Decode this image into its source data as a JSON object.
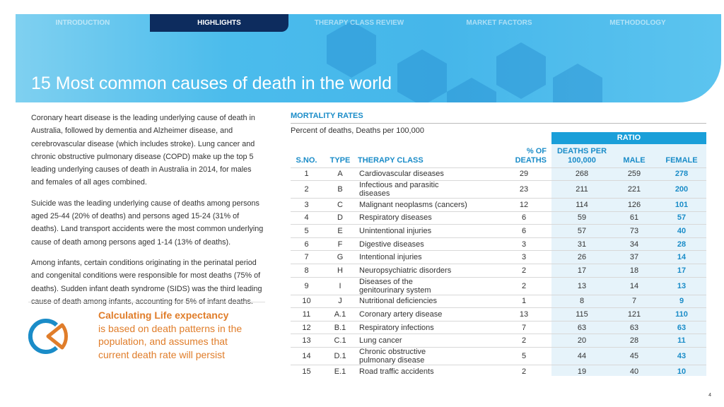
{
  "nav": {
    "tabs": [
      "INTRODUCTION",
      "HIGHLIGHTS",
      "THERAPY  CLASS REVIEW",
      "MARKET  FACTORS",
      "METHODOLOGY"
    ],
    "active": "HIGHLIGHTS"
  },
  "title": "15 Most common causes of death in the world",
  "left": {
    "paragraphs": [
      "Coronary heart disease is the leading underlying cause of death in Australia, followed by dementia and Alzheimer disease, and cerebrovascular disease (which includes stroke). Lung cancer and chronic obstructive pulmonary disease (COPD) make up the top 5 leading underlying causes of death in Australia in 2014, for males and females of all ages combined.",
      "Suicide was the leading underlying cause of deaths among persons aged 25-44 (20% of deaths) and persons aged 15-24 (31% of deaths). Land transport accidents were the most common underlying cause of death among persons aged 1-14 (13% of deaths).",
      "Among infants, certain conditions originating in the perinatal period and congenital conditions were responsible for most deaths (75% of deaths). Sudden infant death syndrome (SIDS) was the third leading cause of death among infants, accounting for 5% of infant deaths."
    ]
  },
  "callout": {
    "heading": "Calculating Life expectancy",
    "body": "is based on death patterns in the population, and assumes that current death rate will persist",
    "color": "#e07d2a"
  },
  "table": {
    "title": "MORTALITY RATES",
    "subtitle": "Percent of deaths, Deaths per 100,000",
    "group_header": "RATIO",
    "headers": [
      "S.NO.",
      "TYPE",
      "THERAPY CLASS",
      "% OF DEATHS",
      "DEATHS PER 100,000",
      "MALE",
      "FEMALE"
    ],
    "rows": [
      [
        "1",
        "A",
        "Cardiovascular diseases",
        "29",
        "268",
        "259",
        "278"
      ],
      [
        "2",
        "B",
        "Infectious and parasitic diseases",
        "23",
        "211",
        "221",
        "200"
      ],
      [
        "3",
        "C",
        "Malignant neoplasms (cancers)",
        "12",
        "114",
        "126",
        "101"
      ],
      [
        "4",
        "D",
        "Respiratory diseases",
        "6",
        "59",
        "61",
        "57"
      ],
      [
        "5",
        "E",
        "Unintentional injuries",
        "6",
        "57",
        "73",
        "40"
      ],
      [
        "6",
        "F",
        "Digestive diseases",
        "3",
        "31",
        "34",
        "28"
      ],
      [
        "7",
        "G",
        "Intentional injuries",
        "3",
        "26",
        "37",
        "14"
      ],
      [
        "8",
        "H",
        "Neuropsychiatric disorders",
        "2",
        "17",
        "18",
        "17"
      ],
      [
        "9",
        "I",
        "Diseases of the genitourinary system",
        "2",
        "13",
        "14",
        "13"
      ],
      [
        "10",
        "J",
        "Nutritional deficiencies",
        "1",
        "8",
        "7",
        "9"
      ],
      [
        "11",
        "A.1",
        "Coronary artery disease",
        "13",
        "115",
        "121",
        "110"
      ],
      [
        "12",
        "B.1",
        "Respiratory infections",
        "7",
        "63",
        "63",
        "63"
      ],
      [
        "13",
        "C.1",
        "Lung cancer",
        "2",
        "20",
        "28",
        "11"
      ],
      [
        "14",
        "D.1",
        "Chronic obstructive pulmonary disease",
        "5",
        "44",
        "45",
        "43"
      ],
      [
        "15",
        "E.1",
        "Road traffic accidents",
        "2",
        "19",
        "40",
        "10"
      ]
    ]
  },
  "page_number": "4",
  "colors": {
    "accent": "#1a8cc8",
    "nav_active": "#0d2c5e",
    "banner": "#45b6ea"
  }
}
